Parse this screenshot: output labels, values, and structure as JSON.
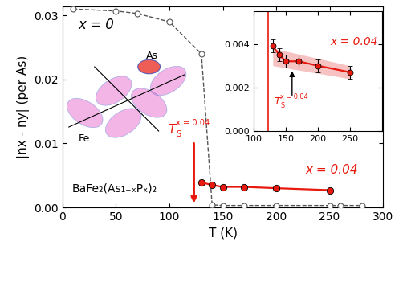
{
  "chart_data": {
    "type": "line",
    "x_label": "T (K)",
    "y_label": "|nx - ny| (per As)",
    "xlim": [
      0,
      300
    ],
    "xticks": [
      0,
      50,
      100,
      150,
      200,
      250,
      300
    ],
    "ylim": [
      0,
      0.0314
    ],
    "yticks": [
      {
        "value": 0,
        "label": "0.00"
      },
      {
        "value": 0.01,
        "label": "0.01"
      },
      {
        "value": 0.02,
        "label": "0.02"
      },
      {
        "value": 0.03,
        "label": "0.03"
      }
    ],
    "series": [
      {
        "name": "x = 0",
        "color": "#555555",
        "marker": "circle_open",
        "line_style": "dashed",
        "x": [
          10,
          50,
          70,
          100,
          130,
          140,
          150,
          170,
          200,
          250,
          260,
          280
        ],
        "values": [
          0.031,
          0.0307,
          0.0303,
          0.029,
          0.024,
          0.0004,
          0.0003,
          0.0003,
          0.0003,
          0.0003,
          0.0003,
          0.0003
        ]
      },
      {
        "name": "x = 0.04",
        "color": "#e8190f",
        "marker": "circle",
        "line_style": "solid",
        "x": [
          130,
          140,
          150,
          170,
          200,
          250
        ],
        "values": [
          0.0039,
          0.0035,
          0.0032,
          0.0032,
          0.003,
          0.0027
        ],
        "errors": [
          0.0003,
          0.0003,
          0.0003,
          0.0003,
          0.0003,
          0.0003
        ]
      }
    ],
    "transition": {
      "T": "T",
      "sub": "S",
      "sup": "x = 0.04",
      "value": 123,
      "color": "#e8190f"
    },
    "annotations": [
      {
        "text": "BaFe₂(As₁₋ₓPₓ)₂"
      },
      {
        "text": "As"
      },
      {
        "text": "Fe"
      }
    ],
    "inset": {
      "xlim": [
        100,
        300
      ],
      "xticks": [
        100,
        150,
        200,
        250
      ],
      "ylim": [
        0,
        0.0055
      ],
      "yticks": [
        {
          "value": 0,
          "label": "0.000"
        },
        {
          "value": 0.002,
          "label": "0.002"
        },
        {
          "value": 0.004,
          "label": "0.004"
        }
      ],
      "band": {
        "x": [
          130,
          250
        ],
        "lower": [
          0.003,
          0.0024
        ],
        "upper": [
          0.0038,
          0.003
        ],
        "color": "#f6c2c2"
      },
      "marker_T": 160
    }
  }
}
